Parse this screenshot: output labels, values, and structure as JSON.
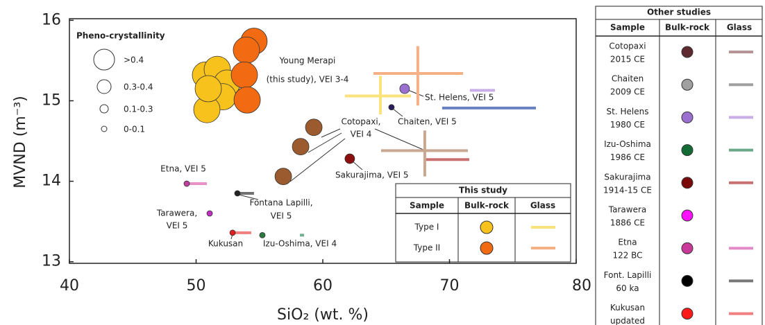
{
  "chart_data": {
    "type": "scatter",
    "xlabel": "SiO₂ (wt. %)",
    "ylabel": "MVND (m⁻³)",
    "xlim": [
      40,
      80
    ],
    "xticks": [
      40,
      50,
      60,
      70,
      80
    ],
    "ylim": [
      12.98,
      16.02
    ],
    "yticks": [
      13,
      14,
      15,
      16
    ],
    "annotation": [
      "Young Merapi",
      "(this study), VEI 3-4"
    ],
    "size_legend": {
      "title": "Pheno-crystallinity",
      "labels": [
        ">0.4",
        "0.3-0.4",
        "0.1-0.3",
        "0-0.1"
      ]
    },
    "series": [
      {
        "name": "Type I",
        "color": "#f8c21c",
        "glass_color": "#fce27a",
        "size_class": 0,
        "x": [
          50.74,
          51.67,
          52.44,
          52.11,
          50.85,
          50.96
        ],
        "y": [
          15.32,
          15.39,
          15.22,
          15.05,
          14.89,
          15.15
        ],
        "glass": [
          {
            "x_range": [
              61.75,
              66.96
            ],
            "y": 15.06
          },
          {
            "x": 64.55,
            "y_range": [
              14.83,
              15.31
            ]
          }
        ]
      },
      {
        "name": "Type II",
        "color": "#f26b12",
        "glass_color": "#f6b086",
        "size_class": 0,
        "x": [
          54.57,
          53.97,
          53.81,
          54.03
        ],
        "y": [
          15.74,
          15.63,
          15.32,
          15.01
        ],
        "glass": [
          {
            "x_range": [
              64.0,
              71.07
            ],
            "y": 15.34
          },
          {
            "x": 67.5,
            "y_range": [
              14.94,
              15.68
            ]
          }
        ]
      },
      {
        "label": [
          "Cotopaxi,",
          "VEI 4"
        ],
        "color": "#9c5b2e",
        "glass_color": "#c8a890",
        "size_class": 1,
        "x": [
          59.29,
          58.25,
          56.88
        ],
        "y": [
          14.67,
          14.43,
          14.06
        ],
        "glass": [
          {
            "x_range": [
              64.6,
              71.45
            ],
            "y": 14.38
          },
          {
            "x": 68.05,
            "y_range": [
              14.06,
              14.63
            ]
          }
        ]
      },
      {
        "label": [
          "St. Helens, VEI 5"
        ],
        "color": "#9a6fd0",
        "glass_color": "#c9aee8",
        "size_class": 2,
        "x": [
          66.46
        ],
        "y": [
          15.15
        ],
        "glass": [
          {
            "x_range": [
              71.61,
              73.59
            ],
            "y": 15.13
          }
        ]
      },
      {
        "label": [
          "Chaiten, VEI 5"
        ],
        "color": "#2b1d5a",
        "glass_color": "#6680c0",
        "size_class": 3,
        "x": [
          65.42
        ],
        "y": [
          14.92
        ],
        "glass": [
          {
            "x_range": [
              69.42,
              76.82
            ],
            "y": 14.91
          }
        ]
      },
      {
        "label": [
          "Sakurajima, VEI 5"
        ],
        "color": "#8b0f0f",
        "glass_color": "#c87070",
        "size_class": 2,
        "x": [
          62.13
        ],
        "y": [
          14.28
        ],
        "glass": [
          {
            "x_range": [
              68.16,
              71.56
            ],
            "y": 14.27
          }
        ]
      },
      {
        "label": [
          "Etna, VEI 5"
        ],
        "color": "#c040a0",
        "glass_color": "#e890c8",
        "size_class": 3,
        "x": [
          49.26
        ],
        "y": [
          13.97
        ],
        "glass": [
          {
            "x_range": [
              49.42,
              50.85
            ],
            "y": 13.97
          }
        ]
      },
      {
        "label": [
          "Fontana Lapilli,",
          "VEI 5"
        ],
        "color": "#222222",
        "glass_color": "#707070",
        "size_class": 3,
        "x": [
          53.26
        ],
        "y": [
          13.85
        ],
        "glass": [
          {
            "x_range": [
              53.37,
              54.57
            ],
            "y": 13.85
          }
        ]
      },
      {
        "label": [
          "Tarawera,",
          "VEI 5"
        ],
        "color": "#c030c0",
        "glass_color": null,
        "size_class": 3,
        "x": [
          51.07
        ],
        "y": [
          13.6
        ],
        "glass": []
      },
      {
        "label": [
          "Kukusan"
        ],
        "color": "#e02020",
        "glass_color": "#f08080",
        "size_class": 3,
        "x": [
          52.88
        ],
        "y": [
          13.36
        ],
        "glass": [
          {
            "x_range": [
              53.04,
              54.35
            ],
            "y": 13.36
          }
        ]
      },
      {
        "label": [
          "Izu-Oshima, VEI 4"
        ],
        "color": "#2a7a40",
        "glass_color": "#70b090",
        "size_class": 3,
        "x": [
          55.23
        ],
        "y": [
          13.33
        ],
        "glass": [
          {
            "x_range": [
              58.19,
              58.52
            ],
            "y": 13.33
          }
        ]
      }
    ],
    "this_study": {
      "title": "This study",
      "headers": [
        "Sample",
        "Bulk-rock",
        "Glass"
      ]
    },
    "other_studies": {
      "title": "Other studies",
      "headers": [
        "Sample",
        "Bulk-rock",
        "Glass"
      ],
      "rows": [
        {
          "sample": [
            "Cotopaxi",
            "2015 CE"
          ],
          "bulk_color": "#5e2a30",
          "glass_color": "#b99494"
        },
        {
          "sample": [
            "Chaiten",
            "2009 CE"
          ],
          "bulk_color": "#a0a0a0",
          "glass_color": "#a0a0a0"
        },
        {
          "sample": [
            "St. Helens",
            "1980 CE"
          ],
          "bulk_color": "#9a6fd0",
          "glass_color": "#c9aee8"
        },
        {
          "sample": [
            "Izu-Oshima",
            "1986 CE"
          ],
          "bulk_color": "#136b35",
          "glass_color": "#6aa88a"
        },
        {
          "sample": [
            "Sakurajima",
            "1914-15 CE"
          ],
          "bulk_color": "#7a0a0a",
          "glass_color": "#c87070"
        },
        {
          "sample": [
            "Tarawera",
            "1886 CE"
          ],
          "bulk_color": "#ff10ff",
          "glass_color": null
        },
        {
          "sample": [
            "Etna",
            "122 BC"
          ],
          "bulk_color": "#c8399a",
          "glass_color": "#e48ac8"
        },
        {
          "sample": [
            "Font. Lapilli",
            "60 ka"
          ],
          "bulk_color": "#000000",
          "glass_color": "#777777"
        },
        {
          "sample": [
            "Kukusan",
            "updated"
          ],
          "bulk_color": "#ff1a1a",
          "glass_color": "#f08080"
        }
      ]
    }
  }
}
